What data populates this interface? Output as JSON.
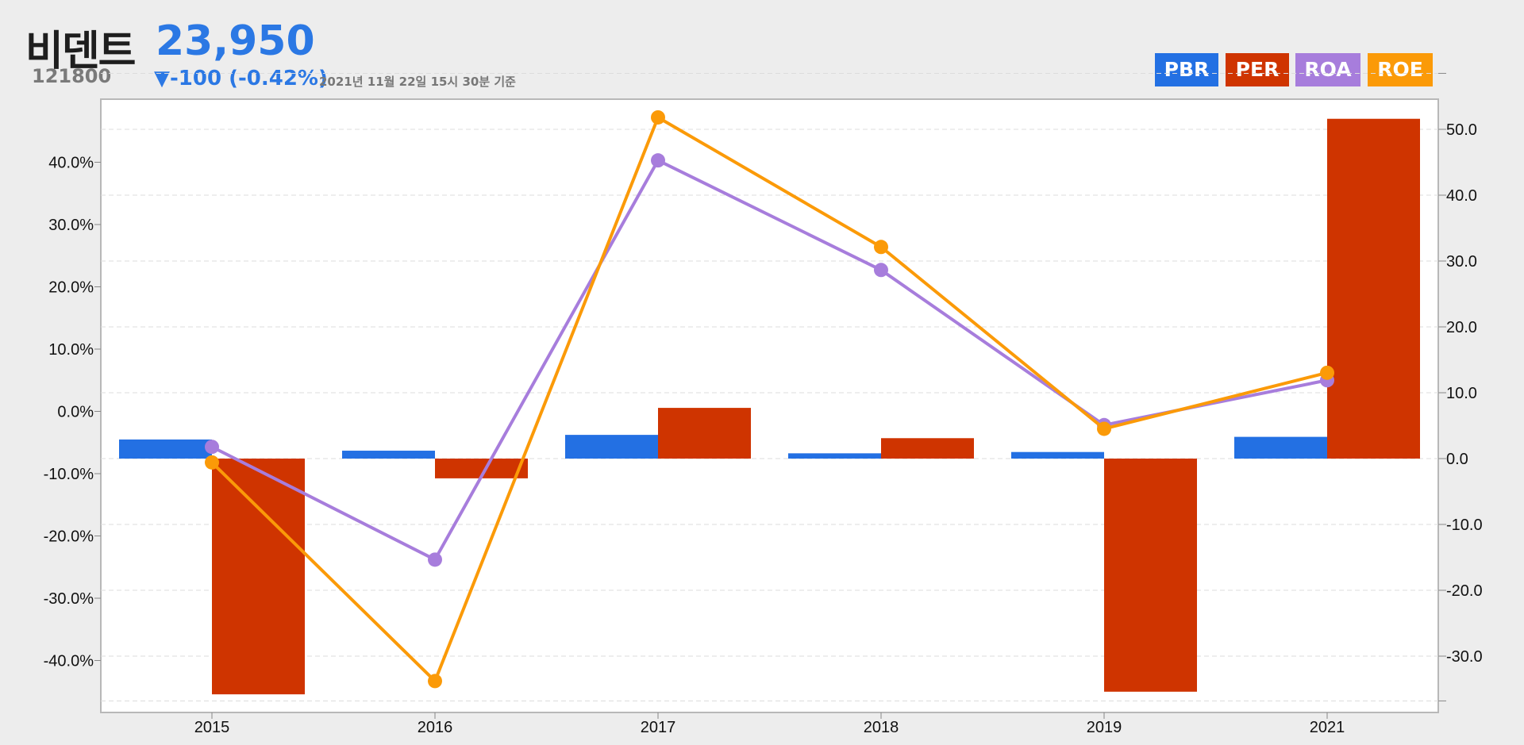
{
  "header": {
    "name": "비덴트",
    "code": "121800",
    "price": "23,950",
    "change": "▼-100 (-0.42%)",
    "as_of": "2021년 11월 22일 15시 30분 기준"
  },
  "colors": {
    "PBR": "#2370e3",
    "PER": "#cf3400",
    "ROA": "#a77ddc",
    "ROE": "#fb9a08",
    "price_text": "#2b78e4"
  },
  "legend": [
    "PBR",
    "PER",
    "ROA",
    "ROE"
  ],
  "chart_data": {
    "type": "bar",
    "categories": [
      "2015",
      "2016",
      "2017",
      "2018",
      "2019",
      "2021"
    ],
    "series": [
      {
        "name": "PBR",
        "type": "bar",
        "axis": "right",
        "values": [
          2.9,
          1.2,
          3.6,
          0.8,
          1.0,
          3.3
        ]
      },
      {
        "name": "PER",
        "type": "bar",
        "axis": "right",
        "values": [
          -35.8,
          -3.0,
          7.7,
          3.1,
          -35.4,
          51.6
        ]
      },
      {
        "name": "ROA",
        "type": "line",
        "axis": "left",
        "values": [
          -5.7,
          -23.8,
          40.3,
          22.7,
          -2.2,
          5.0
        ]
      },
      {
        "name": "ROE",
        "type": "line",
        "axis": "left",
        "values": [
          -8.2,
          -43.3,
          47.2,
          26.4,
          -2.8,
          6.2
        ]
      }
    ],
    "left_axis": {
      "ticks": [
        -40,
        -30,
        -20,
        -10,
        0,
        10,
        20,
        30,
        40
      ],
      "tick_labels": [
        "-40.0%",
        "-30.0%",
        "-20.0%",
        "-10.0%",
        "0.0%",
        "10.0%",
        "20.0%",
        "30.0%",
        "40.0%"
      ]
    },
    "right_axis": {
      "ticks": [
        -30,
        -20,
        -10,
        0,
        10,
        20,
        30,
        40,
        50
      ],
      "tick_labels": [
        "-30.0",
        "-20.0",
        "-10.0",
        "0.0",
        "10.0",
        "20.0",
        "30.0",
        "40.0",
        "50.0"
      ]
    },
    "grid": true
  }
}
